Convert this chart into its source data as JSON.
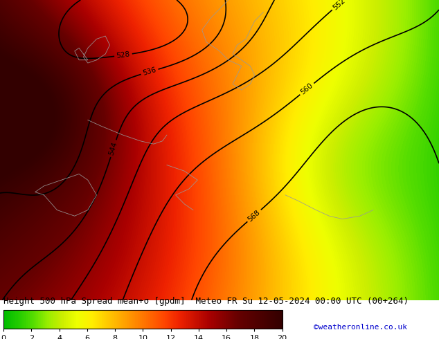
{
  "title": "Height 500 hPa Spread mean+σ [gpdm]  Meteo FR Su 12-05-2024 00:00 UTC (00+264)",
  "colorbar_ticks": [
    0,
    2,
    4,
    6,
    8,
    10,
    12,
    14,
    16,
    18,
    20
  ],
  "vmin": 0,
  "vmax": 20,
  "credit": "©weatheronline.co.uk",
  "background_color": "#ffffff",
  "contour_color": "#000000",
  "title_fontsize": 9,
  "credit_fontsize": 8,
  "colorbar_tick_fontsize": 8,
  "colormap_colors": [
    "#00bb00",
    "#22cc00",
    "#55dd00",
    "#99ee00",
    "#ccee00",
    "#eeff00",
    "#ffee00",
    "#ffcc00",
    "#ffaa00",
    "#ff8800",
    "#ff6600",
    "#ff4400",
    "#ee2200",
    "#cc1100",
    "#aa0000",
    "#880000",
    "#660000",
    "#550000",
    "#440000",
    "#330000"
  ],
  "spread_control_points": [
    [
      0.0,
      0.0,
      17.0
    ],
    [
      0.0,
      0.5,
      18.0
    ],
    [
      0.0,
      1.0,
      15.0
    ],
    [
      0.15,
      0.0,
      16.0
    ],
    [
      0.15,
      0.5,
      16.0
    ],
    [
      0.15,
      1.0,
      12.0
    ],
    [
      0.3,
      0.0,
      12.0
    ],
    [
      0.3,
      0.35,
      13.0
    ],
    [
      0.3,
      0.7,
      10.0
    ],
    [
      0.3,
      1.0,
      8.0
    ],
    [
      0.5,
      0.0,
      10.0
    ],
    [
      0.5,
      0.3,
      11.0
    ],
    [
      0.5,
      0.6,
      8.0
    ],
    [
      0.5,
      1.0,
      5.0
    ],
    [
      0.65,
      0.0,
      8.0
    ],
    [
      0.65,
      0.3,
      7.0
    ],
    [
      0.65,
      0.55,
      3.0
    ],
    [
      0.65,
      0.8,
      2.0
    ],
    [
      0.65,
      1.0,
      2.0
    ],
    [
      0.8,
      0.0,
      6.0
    ],
    [
      0.8,
      0.3,
      5.0
    ],
    [
      0.8,
      0.6,
      1.5
    ],
    [
      0.8,
      1.0,
      1.0
    ],
    [
      1.0,
      0.0,
      5.0
    ],
    [
      1.0,
      0.3,
      3.0
    ],
    [
      1.0,
      0.6,
      1.0
    ],
    [
      1.0,
      1.0,
      0.5
    ]
  ]
}
